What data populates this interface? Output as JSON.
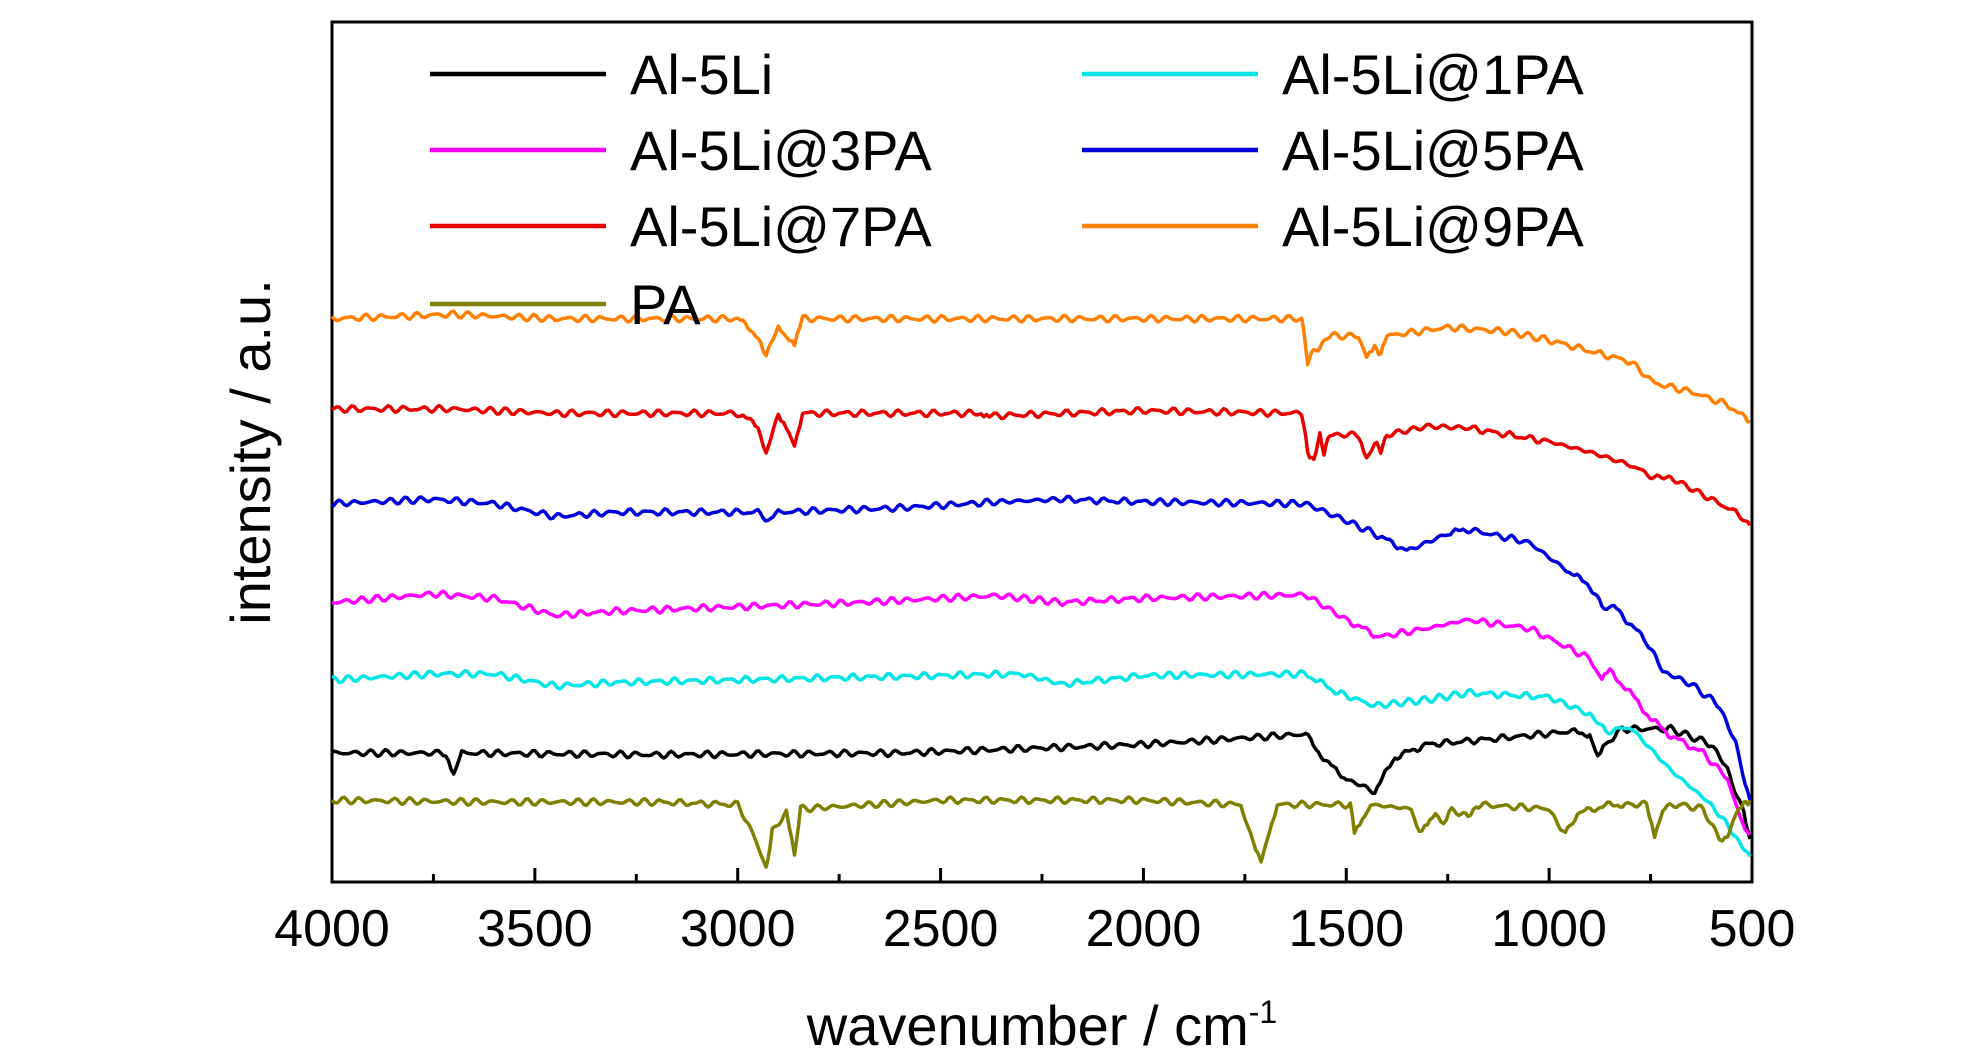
{
  "chart_data": {
    "type": "line",
    "xlabel": "wavenumber / cm",
    "xlabel_superscript": "-1",
    "ylabel": "intensity / a.u.",
    "xlim": [
      4000,
      500
    ],
    "x_reversed": true,
    "ylim": [
      0,
      10
    ],
    "x_ticks": [
      "4000",
      "3500",
      "3000",
      "2500",
      "2000",
      "1500",
      "1000",
      "500"
    ],
    "y_tick_labels": false,
    "grid": false,
    "legend_placement": "top",
    "series": [
      {
        "name": "Al-5Li",
        "color": "#000000",
        "points": [
          [
            4000,
            1.5
          ],
          [
            3720,
            1.5
          ],
          [
            3700,
            1.25
          ],
          [
            3680,
            1.5
          ],
          [
            3200,
            1.48
          ],
          [
            2600,
            1.5
          ],
          [
            2000,
            1.6
          ],
          [
            1600,
            1.72
          ],
          [
            1550,
            1.4
          ],
          [
            1500,
            1.2
          ],
          [
            1430,
            1.05
          ],
          [
            1380,
            1.45
          ],
          [
            1300,
            1.6
          ],
          [
            1100,
            1.68
          ],
          [
            950,
            1.75
          ],
          [
            900,
            1.72
          ],
          [
            880,
            1.45
          ],
          [
            860,
            1.6
          ],
          [
            820,
            1.78
          ],
          [
            700,
            1.78
          ],
          [
            600,
            1.6
          ],
          [
            560,
            1.3
          ],
          [
            520,
            0.8
          ],
          [
            505,
            0.5
          ]
        ]
      },
      {
        "name": "Al-5Li@1PA",
        "color": "#00e5e5",
        "points": [
          [
            4000,
            2.35
          ],
          [
            3750,
            2.42
          ],
          [
            3600,
            2.42
          ],
          [
            3450,
            2.28
          ],
          [
            3300,
            2.32
          ],
          [
            2800,
            2.37
          ],
          [
            2300,
            2.42
          ],
          [
            2200,
            2.3
          ],
          [
            2000,
            2.4
          ],
          [
            1600,
            2.42
          ],
          [
            1520,
            2.2
          ],
          [
            1430,
            2.05
          ],
          [
            1300,
            2.12
          ],
          [
            1200,
            2.2
          ],
          [
            1000,
            2.15
          ],
          [
            900,
            1.95
          ],
          [
            860,
            1.75
          ],
          [
            800,
            1.8
          ],
          [
            700,
            1.3
          ],
          [
            600,
            0.9
          ],
          [
            560,
            0.65
          ],
          [
            520,
            0.4
          ],
          [
            505,
            0.3
          ]
        ]
      },
      {
        "name": "Al-5Li@3PA",
        "color": "#ff00ff",
        "points": [
          [
            4000,
            3.25
          ],
          [
            3750,
            3.35
          ],
          [
            3600,
            3.3
          ],
          [
            3450,
            3.1
          ],
          [
            3300,
            3.15
          ],
          [
            3000,
            3.2
          ],
          [
            2700,
            3.25
          ],
          [
            2360,
            3.33
          ],
          [
            2200,
            3.25
          ],
          [
            2000,
            3.3
          ],
          [
            1600,
            3.34
          ],
          [
            1500,
            3.05
          ],
          [
            1420,
            2.85
          ],
          [
            1300,
            2.95
          ],
          [
            1200,
            3.05
          ],
          [
            1050,
            2.95
          ],
          [
            900,
            2.6
          ],
          [
            870,
            2.35
          ],
          [
            850,
            2.45
          ],
          [
            800,
            2.2
          ],
          [
            750,
            1.9
          ],
          [
            700,
            1.7
          ],
          [
            620,
            1.5
          ],
          [
            560,
            1.2
          ],
          [
            530,
            0.75
          ],
          [
            505,
            0.55
          ]
        ]
      },
      {
        "name": "Al-5Li@5PA",
        "color": "#0000dd",
        "points": [
          [
            4000,
            4.4
          ],
          [
            3750,
            4.45
          ],
          [
            3600,
            4.4
          ],
          [
            3450,
            4.25
          ],
          [
            3300,
            4.3
          ],
          [
            2950,
            4.3
          ],
          [
            2920,
            4.2
          ],
          [
            2900,
            4.3
          ],
          [
            2600,
            4.35
          ],
          [
            2360,
            4.42
          ],
          [
            2200,
            4.45
          ],
          [
            2000,
            4.42
          ],
          [
            1600,
            4.4
          ],
          [
            1500,
            4.2
          ],
          [
            1430,
            4.05
          ],
          [
            1350,
            3.85
          ],
          [
            1250,
            4.05
          ],
          [
            1200,
            4.1
          ],
          [
            1050,
            3.95
          ],
          [
            950,
            3.6
          ],
          [
            900,
            3.45
          ],
          [
            870,
            3.2
          ],
          [
            840,
            3.2
          ],
          [
            760,
            2.8
          ],
          [
            720,
            2.45
          ],
          [
            650,
            2.3
          ],
          [
            580,
            2.05
          ],
          [
            540,
            1.6
          ],
          [
            505,
            0.95
          ]
        ]
      },
      {
        "name": "Al-5Li@7PA",
        "color": "#e60000",
        "points": [
          [
            4000,
            5.5
          ],
          [
            3700,
            5.5
          ],
          [
            3450,
            5.45
          ],
          [
            3000,
            5.45
          ],
          [
            2950,
            5.3
          ],
          [
            2930,
            5.0
          ],
          [
            2900,
            5.42
          ],
          [
            2880,
            5.3
          ],
          [
            2860,
            5.1
          ],
          [
            2840,
            5.45
          ],
          [
            2400,
            5.45
          ],
          [
            2380,
            5.42
          ],
          [
            2000,
            5.48
          ],
          [
            1610,
            5.45
          ],
          [
            1595,
            5.0
          ],
          [
            1580,
            4.9
          ],
          [
            1565,
            5.2
          ],
          [
            1555,
            5.0
          ],
          [
            1540,
            5.2
          ],
          [
            1470,
            5.2
          ],
          [
            1450,
            4.95
          ],
          [
            1430,
            5.1
          ],
          [
            1415,
            5.02
          ],
          [
            1400,
            5.2
          ],
          [
            1300,
            5.3
          ],
          [
            1200,
            5.28
          ],
          [
            1000,
            5.12
          ],
          [
            900,
            5.0
          ],
          [
            800,
            4.85
          ],
          [
            740,
            4.7
          ],
          [
            700,
            4.7
          ],
          [
            600,
            4.45
          ],
          [
            540,
            4.3
          ],
          [
            505,
            4.15
          ]
        ]
      },
      {
        "name": "Al-5Li@9PA",
        "color": "#ff8000",
        "points": [
          [
            4000,
            6.55
          ],
          [
            3700,
            6.6
          ],
          [
            3450,
            6.55
          ],
          [
            3000,
            6.55
          ],
          [
            2950,
            6.35
          ],
          [
            2930,
            6.1
          ],
          [
            2900,
            6.48
          ],
          [
            2880,
            6.35
          ],
          [
            2860,
            6.25
          ],
          [
            2840,
            6.55
          ],
          [
            2000,
            6.55
          ],
          [
            1610,
            6.55
          ],
          [
            1595,
            6.05
          ],
          [
            1580,
            6.2
          ],
          [
            1570,
            6.15
          ],
          [
            1560,
            6.3
          ],
          [
            1540,
            6.35
          ],
          [
            1470,
            6.35
          ],
          [
            1450,
            6.1
          ],
          [
            1430,
            6.2
          ],
          [
            1415,
            6.15
          ],
          [
            1400,
            6.35
          ],
          [
            1250,
            6.45
          ],
          [
            1100,
            6.4
          ],
          [
            1000,
            6.3
          ],
          [
            800,
            6.05
          ],
          [
            740,
            5.8
          ],
          [
            650,
            5.7
          ],
          [
            560,
            5.55
          ],
          [
            505,
            5.35
          ]
        ]
      },
      {
        "name": "PA",
        "color": "#7f7f00",
        "points": [
          [
            4000,
            0.95
          ],
          [
            3600,
            0.93
          ],
          [
            3200,
            0.93
          ],
          [
            3000,
            0.9
          ],
          [
            2960,
            0.55
          ],
          [
            2930,
            0.15
          ],
          [
            2915,
            0.6
          ],
          [
            2880,
            0.8
          ],
          [
            2860,
            0.3
          ],
          [
            2845,
            0.85
          ],
          [
            2500,
            0.95
          ],
          [
            2000,
            0.95
          ],
          [
            1760,
            0.9
          ],
          [
            1730,
            0.45
          ],
          [
            1710,
            0.25
          ],
          [
            1690,
            0.6
          ],
          [
            1670,
            0.9
          ],
          [
            1490,
            0.9
          ],
          [
            1480,
            0.6
          ],
          [
            1460,
            0.75
          ],
          [
            1440,
            0.9
          ],
          [
            1340,
            0.85
          ],
          [
            1320,
            0.6
          ],
          [
            1300,
            0.7
          ],
          [
            1280,
            0.8
          ],
          [
            1260,
            0.65
          ],
          [
            1240,
            0.85
          ],
          [
            1200,
            0.75
          ],
          [
            1180,
            0.9
          ],
          [
            1000,
            0.85
          ],
          [
            960,
            0.55
          ],
          [
            930,
            0.8
          ],
          [
            850,
            0.9
          ],
          [
            800,
            0.9
          ],
          [
            760,
            0.9
          ],
          [
            740,
            0.55
          ],
          [
            720,
            0.85
          ],
          [
            680,
            0.9
          ],
          [
            620,
            0.85
          ],
          [
            580,
            0.5
          ],
          [
            560,
            0.55
          ],
          [
            540,
            0.8
          ],
          [
            520,
            0.9
          ],
          [
            505,
            0.95
          ]
        ]
      }
    ]
  }
}
